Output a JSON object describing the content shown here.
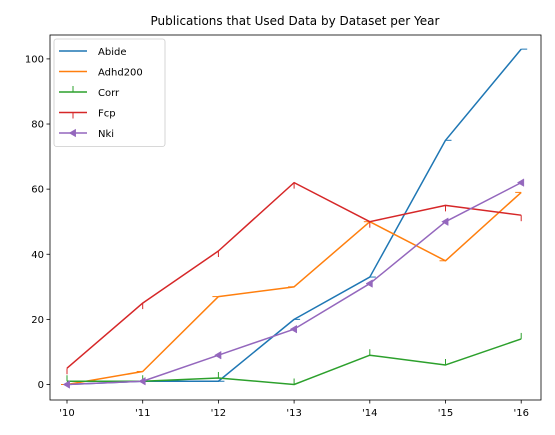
{
  "chart_data": {
    "type": "line",
    "title": "Publications that Used Data by Dataset per Year",
    "xlabel": "",
    "ylabel": "",
    "categories": [
      "'10",
      "'11",
      "'12",
      "'13",
      "'14",
      "'15",
      "'16"
    ],
    "yticks": [
      0,
      20,
      40,
      60,
      80,
      100
    ],
    "ylim": [
      -4,
      108
    ],
    "grid": false,
    "legend_position": "top-left",
    "series": [
      {
        "name": "Abide",
        "color": "#1f77b4",
        "marker": "tickright",
        "values": [
          0,
          1,
          1,
          20,
          33,
          75,
          103
        ]
      },
      {
        "name": "Adhd200",
        "color": "#ff7f0e",
        "marker": "tickleft",
        "values": [
          0,
          4,
          27,
          30,
          50,
          38,
          59
        ]
      },
      {
        "name": "Corr",
        "color": "#2ca02c",
        "marker": "tickup",
        "values": [
          1,
          1,
          2,
          0,
          9,
          6,
          14
        ]
      },
      {
        "name": "Fcp",
        "color": "#d62728",
        "marker": "tickdown",
        "values": [
          5,
          25,
          41,
          62,
          50,
          55,
          52
        ]
      },
      {
        "name": "Nki",
        "color": "#9467bd",
        "marker": "triangle_left",
        "values": [
          0,
          1,
          9,
          17,
          31,
          50,
          62
        ]
      }
    ]
  }
}
